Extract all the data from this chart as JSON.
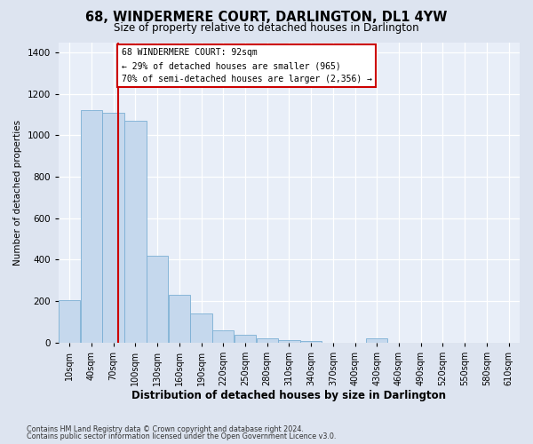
{
  "title": "68, WINDERMERE COURT, DARLINGTON, DL1 4YW",
  "subtitle": "Size of property relative to detached houses in Darlington",
  "xlabel": "Distribution of detached houses by size in Darlington",
  "ylabel": "Number of detached properties",
  "categories": [
    "10sqm",
    "40sqm",
    "70sqm",
    "100sqm",
    "130sqm",
    "160sqm",
    "190sqm",
    "220sqm",
    "250sqm",
    "280sqm",
    "310sqm",
    "340sqm",
    "370sqm",
    "400sqm",
    "430sqm",
    "460sqm",
    "490sqm",
    "520sqm",
    "550sqm",
    "580sqm",
    "610sqm"
  ],
  "bar_heights": [
    205,
    1120,
    1110,
    1070,
    420,
    228,
    140,
    60,
    35,
    20,
    10,
    5,
    0,
    0,
    18,
    0,
    0,
    0,
    0,
    0,
    0
  ],
  "bar_color": "#c5d8ed",
  "bar_edge_color": "#7bafd4",
  "vline_x": 92,
  "vline_color": "#cc0000",
  "annotation_line1": "68 WINDERMERE COURT: 92sqm",
  "annotation_line2": "← 29% of detached houses are smaller (965)",
  "annotation_line3": "70% of semi-detached houses are larger (2,356) →",
  "annotation_box_color": "white",
  "annotation_box_edge_color": "#cc0000",
  "ylim": [
    0,
    1450
  ],
  "yticks": [
    0,
    200,
    400,
    600,
    800,
    1000,
    1200,
    1400
  ],
  "footnote1": "Contains HM Land Registry data © Crown copyright and database right 2024.",
  "footnote2": "Contains public sector information licensed under the Open Government Licence v3.0.",
  "bg_color": "#dde4f0",
  "plot_bg_color": "#e8eef8",
  "title_fontsize": 10.5,
  "subtitle_fontsize": 8.5,
  "xlabel_fontsize": 8.5,
  "ylabel_fontsize": 7.5
}
